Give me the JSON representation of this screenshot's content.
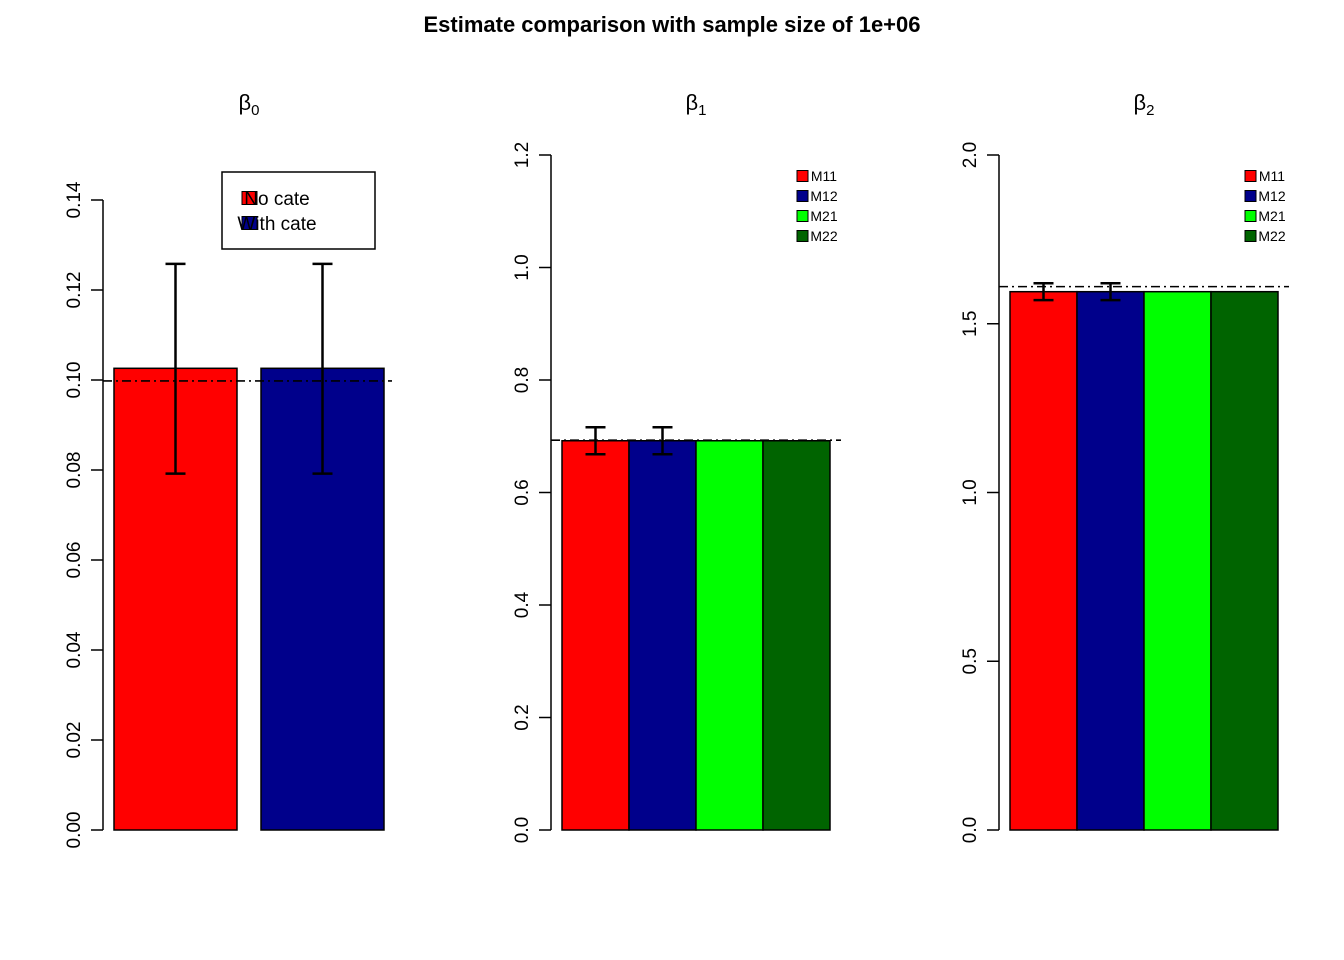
{
  "title": "Estimate comparison with sample size of 1e+06",
  "chart_data": [
    {
      "type": "bar",
      "panel_title": {
        "symbol": "β",
        "subscript": "0"
      },
      "categories": [
        "No cate",
        "With cate"
      ],
      "values": [
        0.1026,
        0.1026
      ],
      "error_bars": [
        [
          0.0792,
          0.1258
        ],
        [
          0.0792,
          0.1258
        ]
      ],
      "reference_line": 0.0998,
      "ylim": [
        0,
        0.14
      ],
      "yticks": [
        0.0,
        0.02,
        0.04,
        0.06,
        0.08,
        0.1,
        0.12,
        0.14
      ],
      "ytick_labels": [
        "0.00",
        "0.02",
        "0.04",
        "0.06",
        "0.08",
        "0.10",
        "0.12",
        "0.14"
      ],
      "colors": [
        "#FF0000",
        "#00008B"
      ],
      "legend": {
        "position": "top-right",
        "boxed": true,
        "entries": [
          {
            "label": "No cate",
            "color": "#FF0000"
          },
          {
            "label": "With cate",
            "color": "#00008B"
          }
        ]
      }
    },
    {
      "type": "bar",
      "panel_title": {
        "symbol": "β",
        "subscript": "1"
      },
      "categories": [
        "M11",
        "M12",
        "M21",
        "M22"
      ],
      "values": [
        0.692,
        0.692,
        0.692,
        0.692
      ],
      "error_bars": [
        [
          0.668,
          0.716
        ],
        [
          0.668,
          0.716
        ],
        null,
        null
      ],
      "reference_line": 0.693,
      "ylim": [
        0,
        1.2
      ],
      "yticks": [
        0.0,
        0.2,
        0.4,
        0.6,
        0.8,
        1.0,
        1.2
      ],
      "ytick_labels": [
        "0.0",
        "0.2",
        "0.4",
        "0.6",
        "0.8",
        "1.0",
        "1.2"
      ],
      "colors": [
        "#FF0000",
        "#00008B",
        "#00FF00",
        "#006400"
      ],
      "legend": {
        "position": "top-right",
        "boxed": false,
        "entries": [
          {
            "label": "M11",
            "color": "#FF0000"
          },
          {
            "label": "M12",
            "color": "#00008B"
          },
          {
            "label": "M21",
            "color": "#00FF00"
          },
          {
            "label": "M22",
            "color": "#006400"
          }
        ]
      }
    },
    {
      "type": "bar",
      "panel_title": {
        "symbol": "β",
        "subscript": "2"
      },
      "categories": [
        "M11",
        "M12",
        "M21",
        "M22"
      ],
      "values": [
        1.595,
        1.595,
        1.595,
        1.595
      ],
      "error_bars": [
        [
          1.57,
          1.62
        ],
        [
          1.57,
          1.62
        ],
        null,
        null
      ],
      "reference_line": 1.61,
      "ylim": [
        0,
        2.0
      ],
      "yticks": [
        0.0,
        0.5,
        1.0,
        1.5,
        2.0
      ],
      "ytick_labels": [
        "0.0",
        "0.5",
        "1.0",
        "1.5",
        "2.0"
      ],
      "colors": [
        "#FF0000",
        "#00008B",
        "#00FF00",
        "#006400"
      ],
      "legend": {
        "position": "top-right",
        "boxed": false,
        "entries": [
          {
            "label": "M11",
            "color": "#FF0000"
          },
          {
            "label": "M12",
            "color": "#00008B"
          },
          {
            "label": "M21",
            "color": "#00FF00"
          },
          {
            "label": "M22",
            "color": "#006400"
          }
        ]
      }
    }
  ]
}
